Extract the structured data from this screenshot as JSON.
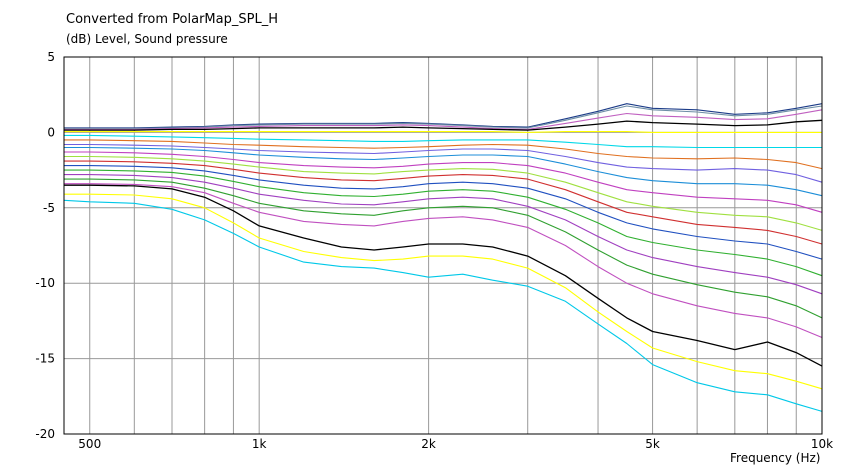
{
  "chart_data": {
    "type": "line",
    "title": "Converted from PolarMap_SPL_H",
    "ylabel": "(dB)  Level, Sound pressure",
    "xlabel": "Frequency  (Hz)",
    "x_scale": "log",
    "xlim": [
      450,
      10000
    ],
    "ylim": [
      -20,
      5
    ],
    "grid": true,
    "x_major_ticks": [
      {
        "value": 500,
        "label": "500"
      },
      {
        "value": 1000,
        "label": "1k"
      },
      {
        "value": 2000,
        "label": "2k"
      },
      {
        "value": 5000,
        "label": "5k"
      },
      {
        "value": 10000,
        "label": "10k"
      }
    ],
    "x_minor_gridlines": [
      600,
      700,
      800,
      900,
      3000,
      4000,
      6000,
      7000,
      8000,
      9000
    ],
    "y_ticks": [
      {
        "value": 5,
        "label": "5"
      },
      {
        "value": 0,
        "label": "0"
      },
      {
        "value": -5,
        "label": "-5"
      },
      {
        "value": -10,
        "label": "-10"
      },
      {
        "value": -15,
        "label": "-15"
      },
      {
        "value": -20,
        "label": "-20"
      }
    ],
    "x": [
      450,
      500,
      600,
      700,
      800,
      900,
      1000,
      1200,
      1400,
      1600,
      1800,
      2000,
      2300,
      2600,
      3000,
      3500,
      4000,
      4500,
      5000,
      6000,
      7000,
      8000,
      9000,
      10000
    ],
    "series": [
      {
        "color": "#1c3c88",
        "values": [
          0.3,
          0.3,
          0.3,
          0.35,
          0.4,
          0.5,
          0.55,
          0.6,
          0.6,
          0.6,
          0.65,
          0.6,
          0.5,
          0.4,
          0.35,
          0.9,
          1.4,
          1.9,
          1.6,
          1.5,
          1.2,
          1.3,
          1.6,
          1.9
        ]
      },
      {
        "color": "#6e8ea6",
        "values": [
          0.25,
          0.25,
          0.25,
          0.3,
          0.35,
          0.45,
          0.5,
          0.55,
          0.55,
          0.55,
          0.6,
          0.55,
          0.45,
          0.35,
          0.3,
          0.8,
          1.3,
          1.75,
          1.5,
          1.35,
          1.1,
          1.2,
          1.5,
          1.75
        ]
      },
      {
        "color": "#c060c0",
        "values": [
          0.2,
          0.2,
          0.2,
          0.25,
          0.3,
          0.35,
          0.4,
          0.45,
          0.45,
          0.45,
          0.5,
          0.45,
          0.35,
          0.25,
          0.2,
          0.6,
          0.95,
          1.25,
          1.1,
          1.0,
          0.85,
          0.9,
          1.2,
          1.5
        ]
      },
      {
        "color": "#000000",
        "values": [
          0.15,
          0.15,
          0.15,
          0.2,
          0.2,
          0.25,
          0.3,
          0.3,
          0.3,
          0.3,
          0.35,
          0.3,
          0.25,
          0.2,
          0.15,
          0.35,
          0.55,
          0.75,
          0.65,
          0.55,
          0.45,
          0.5,
          0.7,
          0.8
        ]
      },
      {
        "color": "#ffff00",
        "values": [
          0.05,
          0.05,
          0.05,
          0.05,
          0.05,
          0.05,
          0.05,
          0.05,
          0.05,
          0.05,
          0.05,
          0.05,
          0.05,
          0.05,
          0.0,
          0.05,
          0.05,
          0.05,
          0.0,
          0.0,
          0.0,
          0.0,
          0.0,
          0.0
        ]
      },
      {
        "color": "#00d8e8",
        "values": [
          -0.2,
          -0.2,
          -0.25,
          -0.3,
          -0.35,
          -0.4,
          -0.45,
          -0.5,
          -0.55,
          -0.6,
          -0.6,
          -0.55,
          -0.5,
          -0.5,
          -0.5,
          -0.65,
          -0.8,
          -0.95,
          -0.95,
          -1.0,
          -1.0,
          -1.0,
          -1.0,
          -1.0
        ]
      },
      {
        "color": "#e07020",
        "values": [
          -0.5,
          -0.5,
          -0.55,
          -0.6,
          -0.7,
          -0.8,
          -0.85,
          -0.95,
          -1.0,
          -1.05,
          -1.0,
          -0.95,
          -0.85,
          -0.8,
          -0.85,
          -1.1,
          -1.4,
          -1.6,
          -1.7,
          -1.75,
          -1.7,
          -1.8,
          -2.0,
          -2.4
        ]
      },
      {
        "color": "#7060e0",
        "values": [
          -0.8,
          -0.8,
          -0.85,
          -0.9,
          -1.0,
          -1.1,
          -1.2,
          -1.3,
          -1.35,
          -1.4,
          -1.3,
          -1.2,
          -1.1,
          -1.1,
          -1.2,
          -1.6,
          -2.0,
          -2.3,
          -2.4,
          -2.5,
          -2.4,
          -2.5,
          -2.8,
          -3.3
        ]
      },
      {
        "color": "#1c8ed8",
        "values": [
          -1.0,
          -1.0,
          -1.05,
          -1.1,
          -1.2,
          -1.35,
          -1.5,
          -1.65,
          -1.75,
          -1.8,
          -1.7,
          -1.6,
          -1.5,
          -1.5,
          -1.6,
          -2.1,
          -2.6,
          -3.0,
          -3.2,
          -3.4,
          -3.4,
          -3.5,
          -3.8,
          -4.2
        ]
      },
      {
        "color": "#c040c0",
        "values": [
          -1.3,
          -1.3,
          -1.35,
          -1.45,
          -1.6,
          -1.8,
          -2.0,
          -2.2,
          -2.3,
          -2.35,
          -2.25,
          -2.1,
          -2.0,
          -2.0,
          -2.2,
          -2.7,
          -3.3,
          -3.8,
          -4.0,
          -4.3,
          -4.4,
          -4.5,
          -4.8,
          -5.3
        ]
      },
      {
        "color": "#a0e040",
        "values": [
          -1.6,
          -1.6,
          -1.65,
          -1.75,
          -1.9,
          -2.1,
          -2.3,
          -2.6,
          -2.7,
          -2.75,
          -2.6,
          -2.5,
          -2.4,
          -2.45,
          -2.7,
          -3.3,
          -4.0,
          -4.6,
          -4.9,
          -5.3,
          -5.5,
          -5.6,
          -6.0,
          -6.5
        ]
      },
      {
        "color": "#d03030",
        "values": [
          -1.9,
          -1.9,
          -1.95,
          -2.05,
          -2.2,
          -2.45,
          -2.7,
          -3.0,
          -3.15,
          -3.2,
          -3.05,
          -2.9,
          -2.8,
          -2.85,
          -3.1,
          -3.8,
          -4.6,
          -5.3,
          -5.6,
          -6.1,
          -6.3,
          -6.5,
          -6.9,
          -7.4
        ]
      },
      {
        "color": "#2050c0",
        "values": [
          -2.2,
          -2.2,
          -2.25,
          -2.35,
          -2.55,
          -2.85,
          -3.15,
          -3.5,
          -3.7,
          -3.75,
          -3.6,
          -3.4,
          -3.3,
          -3.4,
          -3.7,
          -4.4,
          -5.3,
          -6.0,
          -6.4,
          -6.9,
          -7.2,
          -7.4,
          -7.9,
          -8.4
        ]
      },
      {
        "color": "#30b030",
        "values": [
          -2.5,
          -2.5,
          -2.55,
          -2.65,
          -2.9,
          -3.25,
          -3.6,
          -4.0,
          -4.2,
          -4.25,
          -4.1,
          -3.9,
          -3.8,
          -3.9,
          -4.3,
          -5.1,
          -6.0,
          -6.9,
          -7.3,
          -7.8,
          -8.1,
          -8.4,
          -8.9,
          -9.5
        ]
      },
      {
        "color": "#a040c0",
        "values": [
          -2.8,
          -2.8,
          -2.85,
          -3.0,
          -3.3,
          -3.7,
          -4.1,
          -4.5,
          -4.75,
          -4.8,
          -4.6,
          -4.4,
          -4.3,
          -4.4,
          -4.9,
          -5.8,
          -6.9,
          -7.8,
          -8.3,
          -8.9,
          -9.3,
          -9.6,
          -10.1,
          -10.7
        ]
      },
      {
        "color": "#30a030",
        "values": [
          -3.1,
          -3.1,
          -3.15,
          -3.3,
          -3.7,
          -4.2,
          -4.7,
          -5.2,
          -5.4,
          -5.5,
          -5.2,
          -5.0,
          -4.9,
          -5.0,
          -5.5,
          -6.6,
          -7.8,
          -8.8,
          -9.4,
          -10.1,
          -10.6,
          -10.9,
          -11.5,
          -12.3
        ]
      },
      {
        "color": "#c050c0",
        "values": [
          -3.4,
          -3.4,
          -3.45,
          -3.6,
          -4.0,
          -4.7,
          -5.3,
          -5.9,
          -6.1,
          -6.2,
          -5.9,
          -5.7,
          -5.6,
          -5.8,
          -6.3,
          -7.5,
          -8.9,
          -10.0,
          -10.7,
          -11.5,
          -12.0,
          -12.3,
          -12.9,
          -13.6
        ]
      },
      {
        "color": "#000000",
        "values": [
          -3.5,
          -3.5,
          -3.55,
          -3.75,
          -4.3,
          -5.2,
          -6.2,
          -7.0,
          -7.6,
          -7.8,
          -7.6,
          -7.4,
          -7.4,
          -7.6,
          -8.2,
          -9.5,
          -11.0,
          -12.3,
          -13.2,
          -13.8,
          -14.4,
          -13.9,
          -14.6,
          -15.5
        ]
      },
      {
        "color": "#ffff00",
        "values": [
          -4.1,
          -4.1,
          -4.15,
          -4.4,
          -5.0,
          -6.0,
          -7.0,
          -7.9,
          -8.3,
          -8.5,
          -8.4,
          -8.2,
          -8.2,
          -8.4,
          -9.0,
          -10.3,
          -11.9,
          -13.2,
          -14.3,
          -15.2,
          -15.8,
          -16.0,
          -16.5,
          -17.0
        ]
      },
      {
        "color": "#00c8e8",
        "values": [
          -4.5,
          -4.6,
          -4.7,
          -5.1,
          -5.8,
          -6.7,
          -7.6,
          -8.6,
          -8.9,
          -9.0,
          -9.3,
          -9.6,
          -9.4,
          -9.8,
          -10.2,
          -11.2,
          -12.7,
          -14.0,
          -15.4,
          -16.6,
          -17.2,
          -17.4,
          -18.0,
          -18.5
        ]
      }
    ]
  }
}
